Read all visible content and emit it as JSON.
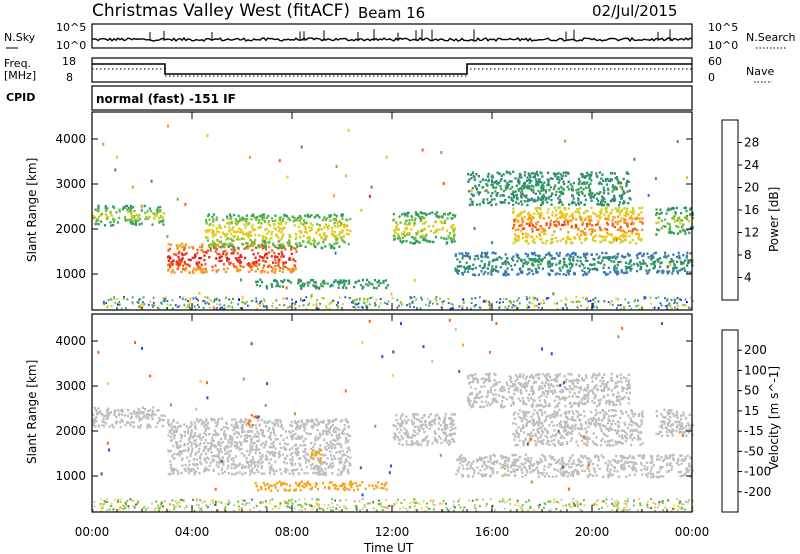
{
  "header": {
    "station": "Christmas Valley West (fitACF)",
    "beam": "Beam 16",
    "date": "02/Jul/2015"
  },
  "top_panels": {
    "nsky_label": "N.Sky",
    "nsky_ticks": [
      "10^5",
      "10^0"
    ],
    "nsearch_label": "N.Search",
    "nsearch_ticks": [
      "10^5",
      "10^0"
    ],
    "freq_label": "Freq.",
    "freq_units": "[MHz]",
    "freq_ticks": [
      "18",
      "8"
    ],
    "nave_label": "Nave",
    "nave_ticks": [
      "60",
      "0"
    ],
    "cpid_label": "CPID",
    "cpid_text": "normal (fast) -151 IF"
  },
  "colors": {
    "power": [
      "#0000ff",
      "#1e4ed8",
      "#3b7bb8",
      "#2f8f6a",
      "#3aa15a",
      "#6fbd3a",
      "#c9d21f",
      "#f5c313",
      "#f7941d",
      "#f25a14",
      "#e8231a",
      "#d40a0a"
    ],
    "velocity": [
      "#1a1aa8",
      "#2b4fd8",
      "#2f7f3e",
      "#58c13a",
      "#bebebe",
      "#f5d142",
      "#f7a41d",
      "#f26a14",
      "#e8281a",
      "#c80a0a"
    ],
    "velocity_gray": "#bebebe"
  },
  "chart_data": [
    {
      "type": "heatmap",
      "name": "power",
      "ylabel": "Slant Range [km]",
      "ylim": [
        200,
        4600
      ],
      "yticks": [
        "1000",
        "2000",
        "3000",
        "4000"
      ],
      "xlim": [
        0,
        24
      ],
      "colorbar": {
        "label": "Power [dB]",
        "range": [
          0,
          32
        ],
        "ticks": [
          "4",
          "8",
          "12",
          "16",
          "20",
          "24",
          "28"
        ]
      },
      "bands": [
        {
          "t0": 0.0,
          "t1": 2.9,
          "r0": 2100,
          "r1": 2550,
          "v0": 10,
          "v1": 20
        },
        {
          "t0": 3.0,
          "t1": 8.2,
          "r0": 1050,
          "r1": 1700,
          "v0": 22,
          "v1": 30
        },
        {
          "t0": 4.5,
          "t1": 10.3,
          "r0": 1600,
          "r1": 2350,
          "v0": 12,
          "v1": 22
        },
        {
          "t0": 6.5,
          "t1": 11.8,
          "r0": 700,
          "r1": 900,
          "v0": 8,
          "v1": 14
        },
        {
          "t0": 12.0,
          "t1": 14.5,
          "r0": 1700,
          "r1": 2400,
          "v0": 10,
          "v1": 22
        },
        {
          "t0": 15.0,
          "t1": 21.5,
          "r0": 2550,
          "r1": 3300,
          "v0": 8,
          "v1": 12
        },
        {
          "t0": 16.8,
          "t1": 22.0,
          "r0": 1700,
          "r1": 2500,
          "v0": 16,
          "v1": 28
        },
        {
          "t0": 14.5,
          "t1": 24.0,
          "r0": 1000,
          "r1": 1500,
          "v0": 6,
          "v1": 12
        },
        {
          "t0": 22.5,
          "t1": 24.0,
          "r0": 1900,
          "r1": 2500,
          "v0": 10,
          "v1": 18
        }
      ]
    },
    {
      "type": "heatmap",
      "name": "velocity",
      "ylabel": "Slant Range [km]",
      "ylim": [
        200,
        4600
      ],
      "yticks": [
        "1000",
        "2000",
        "3000",
        "4000"
      ],
      "xlim": [
        0,
        24
      ],
      "xticks": [
        "00:00",
        "04:00",
        "08:00",
        "12:00",
        "16:00",
        "20:00",
        "00:00"
      ],
      "xlabel": "Time UT",
      "colorbar": {
        "label": "Velocity [m s^-1]",
        "range": [
          -250,
          250
        ],
        "ticks": [
          "200",
          "100",
          "50",
          "15",
          "-15",
          "-50",
          "-100",
          "-200"
        ]
      },
      "bands": [
        {
          "t0": 0.0,
          "t1": 2.9,
          "r0": 2100,
          "r1": 2550,
          "v": 0
        },
        {
          "t0": 3.0,
          "t1": 10.3,
          "r0": 1050,
          "r1": 2300,
          "v": 0
        },
        {
          "t0": 6.2,
          "t1": 6.6,
          "r0": 2150,
          "r1": 2400,
          "v": -150
        },
        {
          "t0": 8.7,
          "t1": 9.2,
          "r0": 1300,
          "r1": 1600,
          "v": -60
        },
        {
          "t0": 6.5,
          "t1": 11.8,
          "r0": 700,
          "r1": 900,
          "v": -60
        },
        {
          "t0": 12.0,
          "t1": 14.5,
          "r0": 1700,
          "r1": 2400,
          "v": 0
        },
        {
          "t0": 15.0,
          "t1": 21.5,
          "r0": 2550,
          "r1": 3300,
          "v": 0
        },
        {
          "t0": 16.8,
          "t1": 22.0,
          "r0": 1700,
          "r1": 2500,
          "v": 0
        },
        {
          "t0": 14.5,
          "t1": 24.0,
          "r0": 1000,
          "r1": 1500,
          "v": 0
        },
        {
          "t0": 22.5,
          "t1": 24.0,
          "r0": 1900,
          "r1": 2500,
          "v": 0
        }
      ]
    }
  ]
}
